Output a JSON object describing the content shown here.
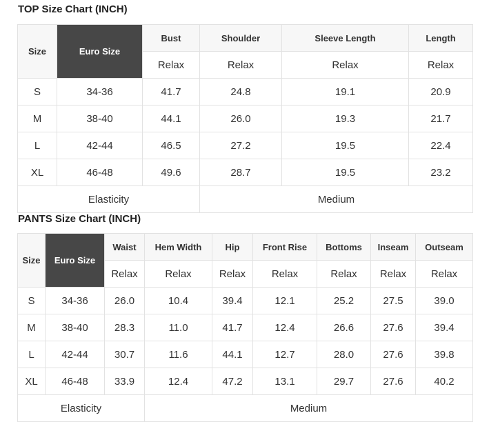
{
  "top": {
    "title": "TOP Size Chart (INCH)",
    "size_header": "Size",
    "euro_header": "Euro Size",
    "columns": [
      "Bust",
      "Shoulder",
      "Sleeve Length",
      "Length"
    ],
    "fit": [
      "Relax",
      "Relax",
      "Relax",
      "Relax"
    ],
    "rows": [
      {
        "size": "S",
        "euro": "34-36",
        "values": [
          "41.7",
          "24.8",
          "19.1",
          "20.9"
        ]
      },
      {
        "size": "M",
        "euro": "38-40",
        "values": [
          "44.1",
          "26.0",
          "19.3",
          "21.7"
        ]
      },
      {
        "size": "L",
        "euro": "42-44",
        "values": [
          "46.5",
          "27.2",
          "19.5",
          "22.4"
        ]
      },
      {
        "size": "XL",
        "euro": "46-48",
        "values": [
          "49.6",
          "28.7",
          "19.5",
          "23.2"
        ]
      }
    ],
    "elasticity_label": "Elasticity",
    "elasticity_value": "Medium"
  },
  "pants": {
    "title": "PANTS Size Chart (INCH)",
    "size_header": "Size",
    "euro_header": "Euro Size",
    "columns": [
      "Waist",
      "Hem Width",
      "Hip",
      "Front Rise",
      "Bottoms",
      "Inseam",
      "Outseam"
    ],
    "fit": [
      "Relax",
      "Relax",
      "Relax",
      "Relax",
      "Relax",
      "Relax",
      "Relax"
    ],
    "rows": [
      {
        "size": "S",
        "euro": "34-36",
        "values": [
          "26.0",
          "10.4",
          "39.4",
          "12.1",
          "25.2",
          "27.5",
          "39.0"
        ]
      },
      {
        "size": "M",
        "euro": "38-40",
        "values": [
          "28.3",
          "11.0",
          "41.7",
          "12.4",
          "26.6",
          "27.6",
          "39.4"
        ]
      },
      {
        "size": "L",
        "euro": "42-44",
        "values": [
          "30.7",
          "11.6",
          "44.1",
          "12.7",
          "28.0",
          "27.6",
          "39.8"
        ]
      },
      {
        "size": "XL",
        "euro": "46-48",
        "values": [
          "33.9",
          "12.4",
          "47.2",
          "13.1",
          "29.7",
          "27.6",
          "40.2"
        ]
      }
    ],
    "elasticity_label": "Elasticity",
    "elasticity_value": "Medium"
  }
}
